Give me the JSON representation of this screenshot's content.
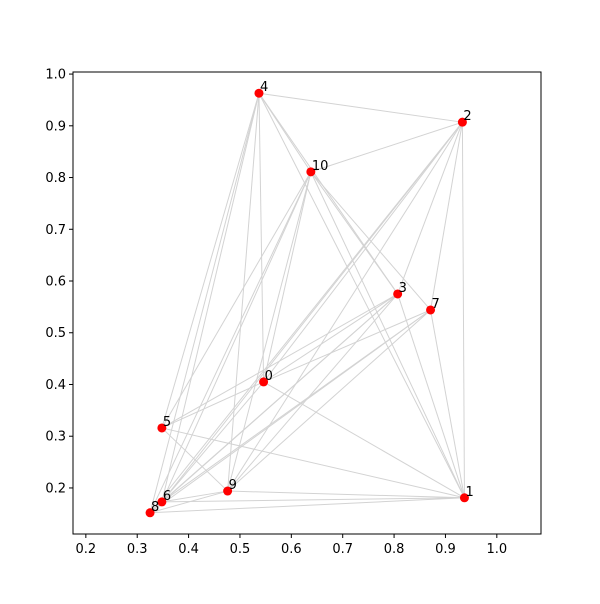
{
  "chart_data": {
    "type": "scatter",
    "labels": [
      "0",
      "1",
      "2",
      "3",
      "4",
      "5",
      "6",
      "7",
      "8",
      "9",
      "10"
    ],
    "x": [
      0.546,
      0.937,
      0.933,
      0.807,
      0.537,
      0.348,
      0.348,
      0.871,
      0.325,
      0.476,
      0.638
    ],
    "y": [
      0.405,
      0.181,
      0.907,
      0.575,
      0.963,
      0.316,
      0.173,
      0.544,
      0.152,
      0.194,
      0.811
    ],
    "color": "#ff0000",
    "edge_color": "#d3d3d3",
    "edges": [
      [
        4,
        2
      ],
      [
        4,
        10
      ],
      [
        4,
        3
      ],
      [
        4,
        1
      ],
      [
        4,
        5
      ],
      [
        4,
        6
      ],
      [
        4,
        8
      ],
      [
        4,
        9
      ],
      [
        4,
        0
      ],
      [
        2,
        10
      ],
      [
        2,
        1
      ],
      [
        2,
        6
      ],
      [
        2,
        8
      ],
      [
        2,
        9
      ],
      [
        2,
        0
      ],
      [
        2,
        7
      ],
      [
        2,
        3
      ],
      [
        10,
        7
      ],
      [
        10,
        1
      ],
      [
        10,
        3
      ],
      [
        10,
        6
      ],
      [
        10,
        8
      ],
      [
        10,
        9
      ],
      [
        10,
        0
      ],
      [
        10,
        5
      ],
      [
        3,
        0
      ],
      [
        3,
        5
      ],
      [
        3,
        6
      ],
      [
        3,
        8
      ],
      [
        3,
        1
      ],
      [
        3,
        9
      ],
      [
        7,
        0
      ],
      [
        7,
        6
      ],
      [
        7,
        9
      ],
      [
        7,
        1
      ],
      [
        7,
        8
      ],
      [
        0,
        5
      ],
      [
        0,
        1
      ],
      [
        0,
        6
      ],
      [
        1,
        5
      ],
      [
        1,
        6
      ],
      [
        1,
        8
      ],
      [
        1,
        9
      ],
      [
        5,
        9
      ],
      [
        6,
        9
      ],
      [
        6,
        8
      ],
      [
        8,
        9
      ]
    ],
    "xlim": [
      0.175,
      1.086
    ],
    "ylim": [
      0.111,
      1.004
    ],
    "xticks": [
      0.2,
      0.3,
      0.4,
      0.5,
      0.6,
      0.7,
      0.8,
      0.9,
      {
        "value": 1,
        "label": "1.0"
      }
    ],
    "yticks": [
      0.2,
      0.3,
      0.4,
      0.5,
      0.6,
      0.7,
      0.8,
      0.9,
      {
        "value": 1,
        "label": "1.0"
      }
    ]
  }
}
